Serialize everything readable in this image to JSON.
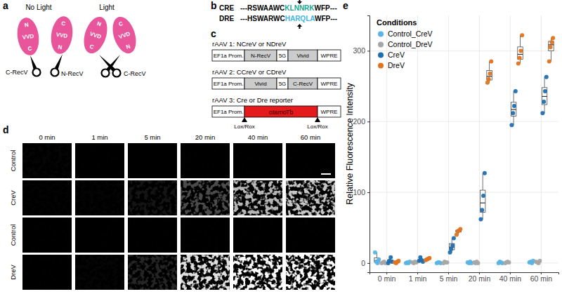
{
  "panel_labels": [
    "a",
    "b",
    "c",
    "d",
    "e"
  ],
  "panels": {
    "a": {
      "conditions": [
        "No Light",
        "Light"
      ],
      "domains": [
        "N",
        "VVD",
        "C"
      ],
      "fragments": [
        "C-RecV",
        "N-RecV"
      ]
    },
    "b": {
      "sequences": [
        {
          "name": "CRE",
          "prefix": "---RSWAAWC",
          "motif": "KLNNRK",
          "suffix": "WFP---",
          "color": "#1aa58f"
        },
        {
          "name": "DRE",
          "prefix": "---HSWARWC",
          "motif": "HARQLA",
          "suffix": "WFP---",
          "color": "#41b6e6"
        }
      ]
    },
    "c": {
      "constructs": [
        {
          "title": "rAAV 1: NCreV or NDreV",
          "elements": [
            "EF1a Prom.",
            "N-RecV",
            "5G",
            "Vivid",
            "WPRE"
          ]
        },
        {
          "title": "rAAV 2: CCreV or CDreV",
          "elements": [
            "EF1a Prom.",
            "Vivid",
            "5G",
            "C-RecV",
            "WPRE"
          ]
        },
        {
          "title": "rAAV 3: Cre or Dre reporter",
          "elements": [
            "EF1a Prom.",
            "dTomato",
            "WPRE"
          ],
          "sites": [
            "Lox/Rox",
            "Lox/Rox"
          ]
        }
      ]
    },
    "d": {
      "times": [
        "0 min",
        "1 min",
        "5 min",
        "20 min",
        "40 min",
        "60 min"
      ],
      "rows": [
        "Control",
        "CreV",
        "Control",
        "DreV"
      ]
    }
  },
  "chart_data": {
    "type": "box",
    "y_label": "Relative Fluorescence Intensity",
    "categories": [
      "0 min",
      "1 min",
      "5 min",
      "20 min",
      "40 min",
      "60 min"
    ],
    "legend_title": "Conditions",
    "legend": "top-left",
    "grid": true,
    "ylim": [
      -13,
      350
    ],
    "yticks": [
      0,
      100,
      200,
      300
    ],
    "series": [
      {
        "name": "Control_CreV",
        "color": "#5ab4e5",
        "values": [
          [
            15,
            2,
            0,
            5
          ],
          [
            0,
            1,
            0,
            2
          ],
          [
            0,
            1,
            1,
            0
          ],
          [
            1,
            0,
            2,
            0
          ],
          [
            0,
            2,
            1,
            0
          ],
          [
            1,
            2,
            0,
            3
          ]
        ]
      },
      {
        "name": "Control_DreV",
        "color": "#a6a6a6",
        "values": [
          [
            0,
            1,
            2,
            0
          ],
          [
            1,
            0,
            2,
            1
          ],
          [
            0,
            2,
            1,
            1
          ],
          [
            1,
            0,
            2,
            0
          ],
          [
            0,
            1,
            2,
            1
          ],
          [
            2,
            1,
            0,
            3
          ]
        ]
      },
      {
        "name": "CreV",
        "color": "#1f6fb0",
        "values": [
          [
            0,
            3,
            8,
            2
          ],
          [
            3,
            8,
            4,
            2
          ],
          [
            15,
            20,
            25,
            35
          ],
          [
            62,
            75,
            95,
            127
          ],
          [
            195,
            212,
            222,
            243
          ],
          [
            212,
            228,
            243,
            263
          ]
        ]
      },
      {
        "name": "DreV",
        "color": "#e0731f",
        "values": [
          [
            1,
            0,
            2,
            3
          ],
          [
            4,
            5,
            6,
            7
          ],
          [
            40,
            45,
            46,
            48
          ],
          [
            255,
            260,
            268,
            285
          ],
          [
            282,
            290,
            300,
            322
          ],
          [
            285,
            305,
            312,
            318
          ]
        ]
      }
    ]
  }
}
